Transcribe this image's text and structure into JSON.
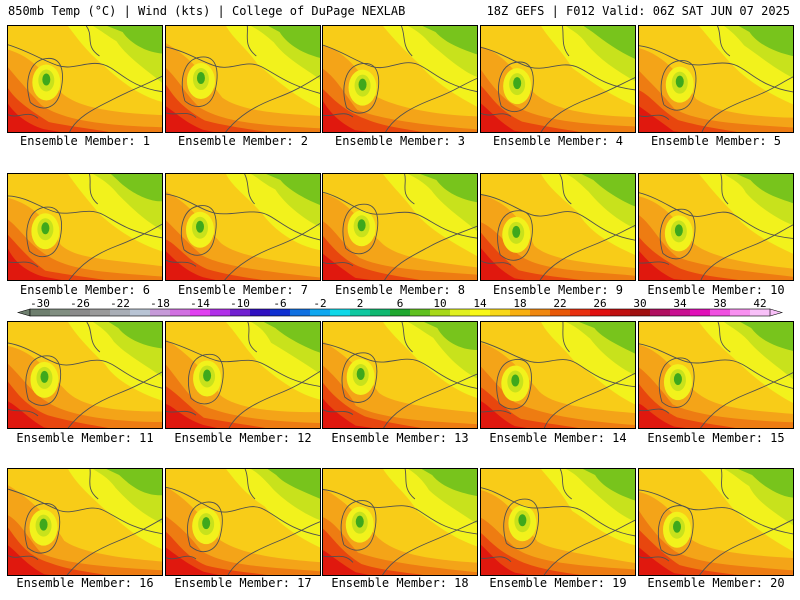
{
  "header": {
    "left": "850mb Temp (°C) | Wind (kts) | College of DuPage NEXLAB",
    "right": "18Z GEFS | F012 Valid: 06Z SAT JUN 07 2025"
  },
  "caption_prefix": "Ensemble Member: ",
  "members": [
    {
      "label": "Ensemble Member: 1",
      "number": 1
    },
    {
      "label": "Ensemble Member: 2",
      "number": 2
    },
    {
      "label": "Ensemble Member: 3",
      "number": 3
    },
    {
      "label": "Ensemble Member: 4",
      "number": 4
    },
    {
      "label": "Ensemble Member: 5",
      "number": 5
    },
    {
      "label": "Ensemble Member: 6",
      "number": 6
    },
    {
      "label": "Ensemble Member: 7",
      "number": 7
    },
    {
      "label": "Ensemble Member: 8",
      "number": 8
    },
    {
      "label": "Ensemble Member: 9",
      "number": 9
    },
    {
      "label": "Ensemble Member: 10",
      "number": 10
    },
    {
      "label": "Ensemble Member: 11",
      "number": 11
    },
    {
      "label": "Ensemble Member: 12",
      "number": 12
    },
    {
      "label": "Ensemble Member: 13",
      "number": 13
    },
    {
      "label": "Ensemble Member: 14",
      "number": 14
    },
    {
      "label": "Ensemble Member: 15",
      "number": 15
    },
    {
      "label": "Ensemble Member: 16",
      "number": 16
    },
    {
      "label": "Ensemble Member: 17",
      "number": 17
    },
    {
      "label": "Ensemble Member: 18",
      "number": 18
    },
    {
      "label": "Ensemble Member: 19",
      "number": 19
    },
    {
      "label": "Ensemble Member: 20",
      "number": 20
    }
  ],
  "legend": {
    "tick_labels": [
      "-30",
      "-26",
      "-22",
      "-18",
      "-14",
      "-10",
      "-6",
      "-2",
      "2",
      "6",
      "10",
      "14",
      "18",
      "22",
      "26",
      "30",
      "34",
      "38",
      "42"
    ],
    "colors": [
      "#6e7f6e",
      "#808e80",
      "#8b8b8b",
      "#9a9a9a",
      "#a9aeb6",
      "#b8c4d4",
      "#c69ad8",
      "#d070e0",
      "#e040f0",
      "#b030e8",
      "#7020d0",
      "#3010c0",
      "#1030d0",
      "#1070e0",
      "#10a8f0",
      "#10d8e8",
      "#10c8a0",
      "#10b870",
      "#20a830",
      "#60c020",
      "#a8d818",
      "#e0f020",
      "#f8f818",
      "#f8d818",
      "#f8b010",
      "#f08810",
      "#e85808",
      "#e83010",
      "#e01010",
      "#c01010",
      "#a01010",
      "#b01060",
      "#c81090",
      "#e010b8",
      "#f050e0",
      "#f890f0",
      "#f8c0f8"
    ]
  },
  "map": {
    "colors": {
      "green_dark": "#3ea81c",
      "green": "#78c41c",
      "yellow_green": "#c8e21c",
      "yellow": "#f2f21c",
      "gold": "#f8cc18",
      "orange": "#f4a418",
      "orange_dark": "#ee7c12",
      "red_orange": "#e8460e",
      "red": "#e0180e",
      "border": "#505050"
    }
  }
}
